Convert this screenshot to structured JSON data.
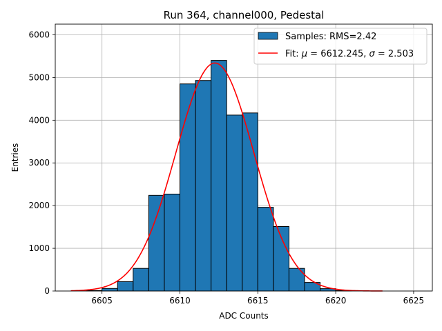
{
  "chart_data": {
    "type": "bar",
    "title": "Run 364, channel000, Pedestal",
    "xlabel": "ADC Counts",
    "ylabel": "Entries",
    "xlim": [
      6602.0,
      6626.2
    ],
    "ylim": [
      0,
      6250
    ],
    "xticks": [
      6605,
      6610,
      6615,
      6620,
      6625
    ],
    "yticks": [
      0,
      1000,
      2000,
      3000,
      4000,
      5000,
      6000
    ],
    "grid": true,
    "legend_position": "top-right",
    "histogram": {
      "name": "Samples: RMS=2.42",
      "color": "#1f77b4",
      "bins": [
        {
          "x0": 6603,
          "x1": 6604,
          "value": 0
        },
        {
          "x0": 6604,
          "x1": 6605,
          "value": 12
        },
        {
          "x0": 6605,
          "x1": 6606,
          "value": 60
        },
        {
          "x0": 6606,
          "x1": 6607,
          "value": 220
        },
        {
          "x0": 6607,
          "x1": 6608,
          "value": 530
        },
        {
          "x0": 6608,
          "x1": 6609,
          "value": 2240
        },
        {
          "x0": 6609,
          "x1": 6610,
          "value": 2270
        },
        {
          "x0": 6610,
          "x1": 6611,
          "value": 4850
        },
        {
          "x0": 6611,
          "x1": 6612,
          "value": 4930
        },
        {
          "x0": 6612,
          "x1": 6613,
          "value": 5400
        },
        {
          "x0": 6613,
          "x1": 6614,
          "value": 4120
        },
        {
          "x0": 6614,
          "x1": 6615,
          "value": 4170
        },
        {
          "x0": 6615,
          "x1": 6616,
          "value": 1960
        },
        {
          "x0": 6616,
          "x1": 6617,
          "value": 1510
        },
        {
          "x0": 6617,
          "x1": 6618,
          "value": 530
        },
        {
          "x0": 6618,
          "x1": 6619,
          "value": 200
        },
        {
          "x0": 6619,
          "x1": 6620,
          "value": 55
        },
        {
          "x0": 6620,
          "x1": 6621,
          "value": 10
        }
      ]
    },
    "fit": {
      "name": "Fit: μ = 6612.245, σ = 2.503",
      "legend_prefix": "Fit: ",
      "legend_mu_symbol": "μ",
      "legend_mu_text": " = 6612.245, ",
      "legend_sigma_symbol": "σ",
      "legend_sigma_text": " = 2.503",
      "color": "#ff0000",
      "mu": 6612.245,
      "sigma": 2.503,
      "amplitude": 5340,
      "x_range": [
        6603,
        6623
      ]
    }
  }
}
